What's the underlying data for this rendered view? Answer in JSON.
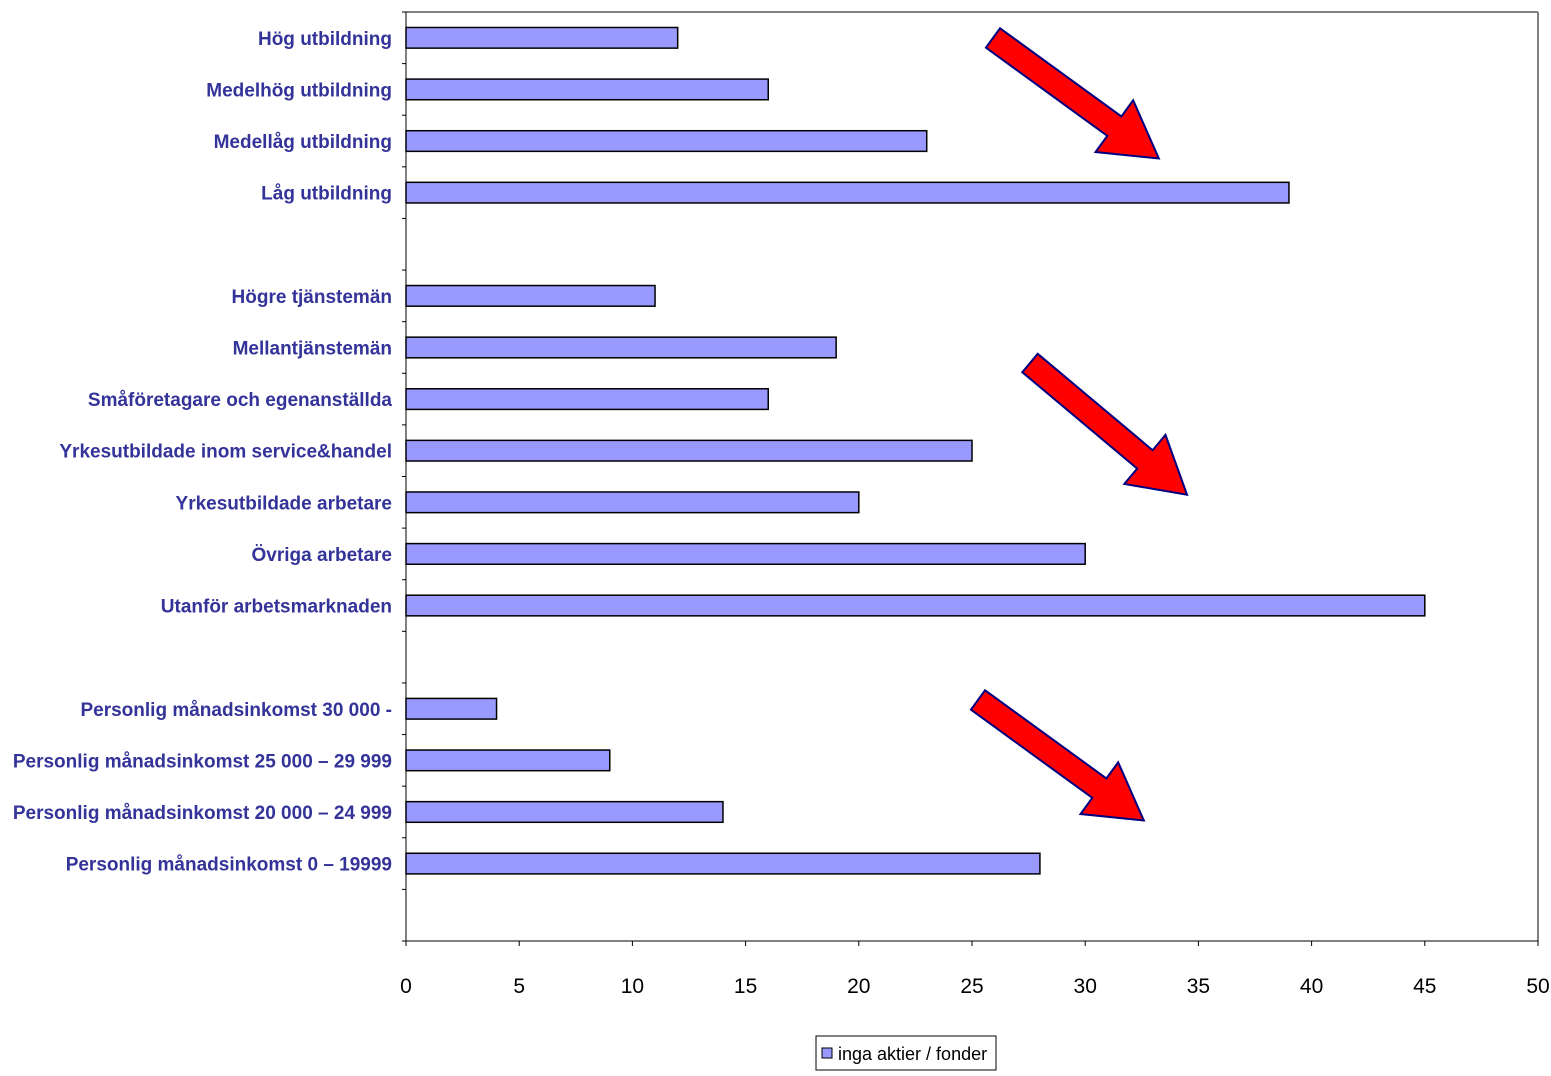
{
  "chart_data": {
    "type": "bar",
    "orientation": "horizontal",
    "categories": [
      "Hög utbildning",
      "Medelhög utbildning",
      "Medellåg utbildning",
      "Låg utbildning",
      "",
      "Högre tjänstemän",
      "Mellantjänstemän",
      "Småföretagare och egenanställda",
      "Yrkesutbildade inom service&handel",
      "Yrkesutbildade arbetare",
      "Övriga arbetare",
      "Utanför arbetsmarknaden",
      "",
      "Personlig månadsinkomst 30 000 -",
      "Personlig månadsinkomst 25 000 – 29 999",
      "Personlig månadsinkomst 20 000 – 24 999",
      "Personlig månadsinkomst 0 – 19999",
      ""
    ],
    "series": [
      {
        "name": "inga aktier / fonder",
        "values": [
          12,
          16,
          23,
          39,
          null,
          11,
          19,
          16,
          25,
          20,
          30,
          45,
          null,
          4,
          9,
          14,
          28,
          null
        ]
      }
    ],
    "xlim": [
      0,
      50
    ],
    "xticks": [
      0,
      5,
      10,
      15,
      20,
      25,
      30,
      35,
      40,
      45,
      50
    ],
    "title": "",
    "xlabel": "",
    "ylabel": "",
    "grid": false,
    "legend_position": "bottom",
    "colors": {
      "bar_fill": "#9999FF",
      "bar_stroke": "#000000",
      "label_color": "#333399",
      "arrow_fill": "#FF0000",
      "arrow_stroke": "#000080",
      "plot_border": "#808080"
    },
    "annotations": [
      "red-arrow",
      "red-arrow",
      "red-arrow"
    ]
  }
}
